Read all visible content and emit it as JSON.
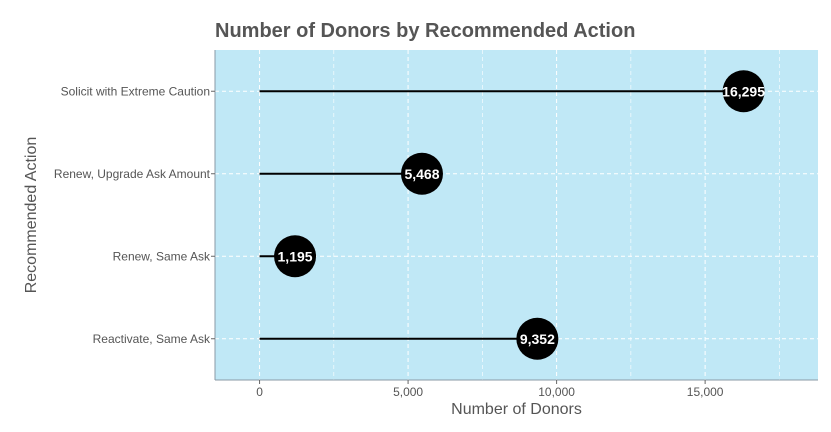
{
  "chart_data": {
    "type": "lollipop",
    "title": "Number of Donors by Recommended Action",
    "xlabel": "Number of Donors",
    "ylabel": "Recommended Action",
    "categories": [
      "Solicit with Extreme Caution",
      "Renew, Upgrade Ask Amount",
      "Renew, Same Ask",
      "Reactivate, Same Ask"
    ],
    "values": [
      16295,
      5468,
      1195,
      9352
    ],
    "value_labels": [
      "16,295",
      "5,468",
      "1,195",
      "9,352"
    ],
    "xlim": [
      -1500,
      18800
    ],
    "xticks": [
      0,
      5000,
      10000,
      15000
    ],
    "xtick_labels": [
      "0",
      "5,000",
      "10,000",
      "15,000"
    ],
    "grid": true,
    "legend": "none",
    "colors": {
      "panel_background": "#c0e8f6",
      "marker": "#000000",
      "stem": "#000000",
      "value_label": "#ffffff",
      "grid": "#ffffff",
      "axis_text": "#555555"
    }
  }
}
